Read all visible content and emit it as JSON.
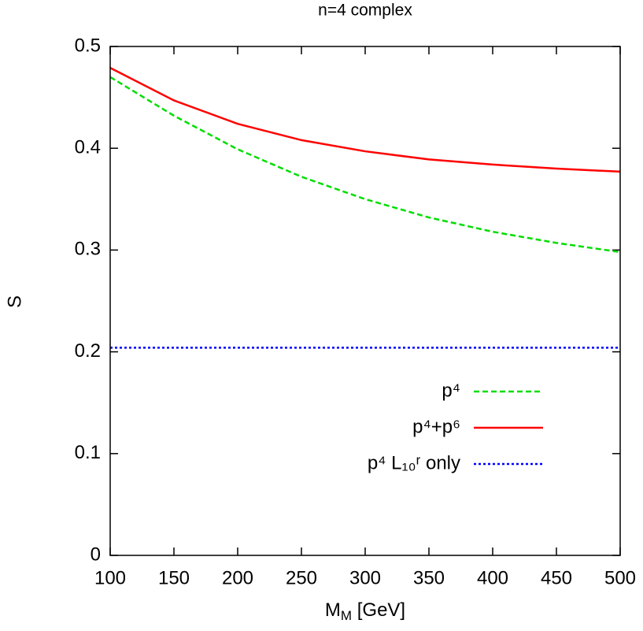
{
  "chart_data": {
    "type": "line",
    "title": "n=4 complex",
    "xlabel": [
      "M",
      "M",
      " [GeV]"
    ],
    "ylabel": "S",
    "x": [
      100,
      150,
      200,
      250,
      300,
      350,
      400,
      450,
      500
    ],
    "series": [
      {
        "name": "p⁴",
        "color": "#00dd00",
        "dash": "dashed",
        "values": [
          0.47,
          0.432,
          0.399,
          0.372,
          0.35,
          0.332,
          0.318,
          0.307,
          0.298
        ]
      },
      {
        "name": "p⁴+p⁶",
        "color": "#ff0000",
        "dash": "solid",
        "values": [
          0.479,
          0.447,
          0.424,
          0.408,
          0.397,
          0.389,
          0.384,
          0.38,
          0.377
        ]
      },
      {
        "name": "p⁴ L₁₀ʳ only",
        "color": "#0000ff",
        "dash": "dotted",
        "values": [
          0.204,
          0.204,
          0.204,
          0.204,
          0.204,
          0.204,
          0.204,
          0.204,
          0.204
        ]
      }
    ],
    "xlim": [
      100,
      500
    ],
    "xticks": [
      100,
      150,
      200,
      250,
      300,
      350,
      400,
      450,
      500
    ],
    "ylim": [
      0,
      0.5
    ],
    "yticks": [
      0,
      0.1,
      0.2,
      0.3,
      0.4,
      0.5
    ],
    "grid": false,
    "legend": "lower-right"
  }
}
